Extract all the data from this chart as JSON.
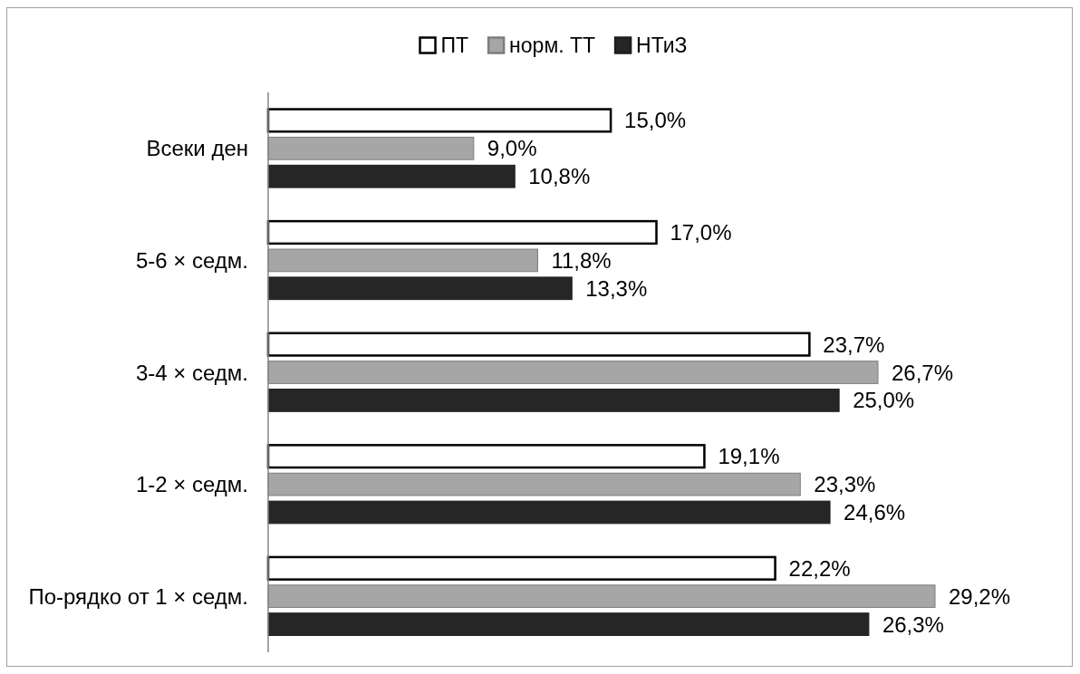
{
  "chart_data": {
    "type": "bar",
    "orientation": "horizontal",
    "categories": [
      "Всеки ден",
      "5-6 × седм.",
      "3-4 × седм.",
      "1-2 × седм.",
      "По-рядко от 1 × седм."
    ],
    "series": [
      {
        "name": "ПТ",
        "color": "#ffffff",
        "values": [
          15.0,
          17.0,
          23.7,
          19.1,
          22.2
        ],
        "value_labels": [
          "15,0%",
          "17,0%",
          "23,7%",
          "19,1%",
          "22,2%"
        ]
      },
      {
        "name": "норм. ТТ",
        "color": "#a6a6a6",
        "values": [
          9.0,
          11.8,
          26.7,
          23.3,
          29.2
        ],
        "value_labels": [
          "9,0%",
          "11,8%",
          "26,7%",
          "23,3%",
          "29,2%"
        ]
      },
      {
        "name": "НТиЗ",
        "color": "#262626",
        "values": [
          10.8,
          13.3,
          25.0,
          24.6,
          26.3
        ],
        "value_labels": [
          "10,8%",
          "13,3%",
          "25,0%",
          "24,6%",
          "26,3%"
        ]
      }
    ],
    "tick_labels": "y",
    "legend": "top"
  }
}
